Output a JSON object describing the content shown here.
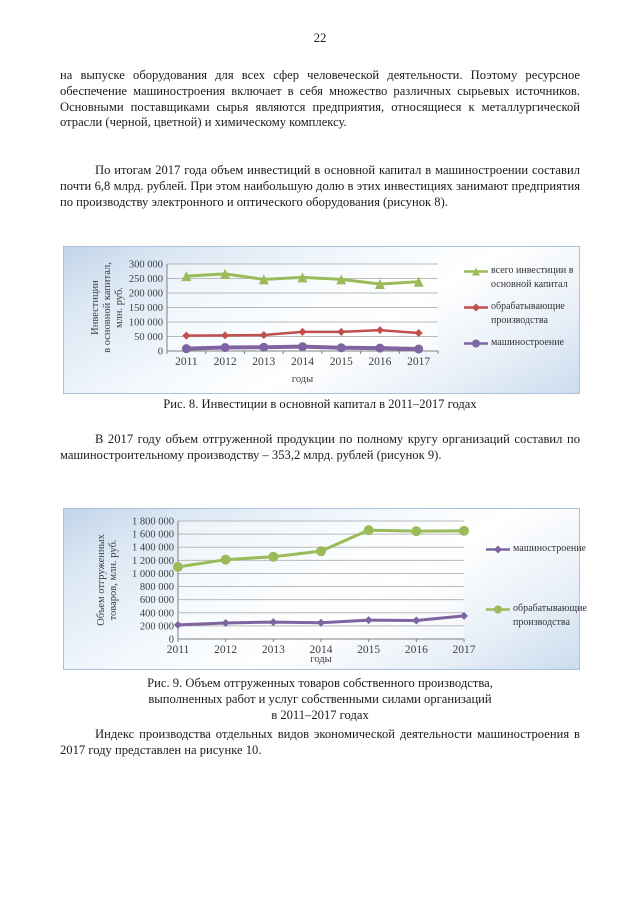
{
  "page_number": "22",
  "paragraphs": {
    "p1": "на выпуске оборудования для всех сфер человеческой деятельности. Поэтому ресурсное обеспечение машиностроения включает в себя множество различных сырьевых источников. Основными поставщиками сырья являются предприятия, относящиеся к металлургической отрасли (черной, цветной) и химическому комплексу.",
    "p2": "По итогам 2017 года объем инвестиций в основной капитал в машиностроении составил почти 6,8 млрд. рублей. При этом наибольшую долю в этих инвестициях занимают предприятия по производству электронного и оптического оборудования (рисунок 8).",
    "p3": "В 2017 году объем отгруженной продукции по полному кругу организаций составил по машиностроительному производству – 353,2 млрд. рублей (рисунок 9).",
    "p4": "Индекс производства отдельных видов экономической деятельности машиностроения в 2017 году представлен на рисунке 10."
  },
  "figure8": {
    "caption": "Рис. 8. Инвестиции в основной капитал в 2011–2017 годах"
  },
  "figure9": {
    "caption_lines": [
      "Рис. 9. Объем отгруженных товаров собственного производства,",
      "выполненных работ и услуг собственными силами организаций",
      "в 2011–2017 годах"
    ]
  },
  "chart_data": [
    {
      "type": "line",
      "x": [
        2011,
        2012,
        2013,
        2014,
        2015,
        2016,
        2017
      ],
      "series": [
        {
          "name": "всего инвестиции в основной капитал",
          "color": "#9BBB59",
          "marker": "triangle",
          "values": [
            258000,
            266000,
            247000,
            254000,
            247000,
            231000,
            239000
          ]
        },
        {
          "name": "обрабатывающие производства",
          "color": "#C0504D",
          "marker": "diamond",
          "values": [
            53000,
            54000,
            55000,
            66000,
            66000,
            72000,
            62000
          ]
        },
        {
          "name": "машиностроение",
          "color": "#8064A2",
          "marker": "circle",
          "values": [
            8000,
            12000,
            13000,
            15000,
            11000,
            10000,
            6800
          ]
        }
      ],
      "title": "",
      "xlabel": "годы",
      "ylabel": "Инвестиции в основной капитал, млн. руб.",
      "ylabel_lines": [
        "Инвестиции",
        "в основной капитал,",
        "млн. руб."
      ],
      "ylim": [
        0,
        300000
      ],
      "ytick_step": 50000,
      "grid": true,
      "legend_position": "right"
    },
    {
      "type": "line",
      "x": [
        2011,
        2012,
        2013,
        2014,
        2015,
        2016,
        2017
      ],
      "series": [
        {
          "name": "машиностроение",
          "color": "#8064A2",
          "marker": "diamond",
          "values": [
            215000,
            245000,
            258000,
            248000,
            288000,
            283000,
            353200
          ]
        },
        {
          "name": "обрабатывающие производства",
          "color": "#9BBB59",
          "marker": "circle",
          "values": [
            1100000,
            1210000,
            1255000,
            1340000,
            1660000,
            1645000,
            1650000
          ]
        }
      ],
      "title": "",
      "xlabel": "годы",
      "ylabel": "Объем отгруженных товаров, млн. руб.",
      "ylabel_lines": [
        "Объем отгруженных",
        "товаров, млн. руб."
      ],
      "ylim": [
        0,
        1800000
      ],
      "ytick_step": 200000,
      "grid": true,
      "legend_position": "right"
    }
  ]
}
